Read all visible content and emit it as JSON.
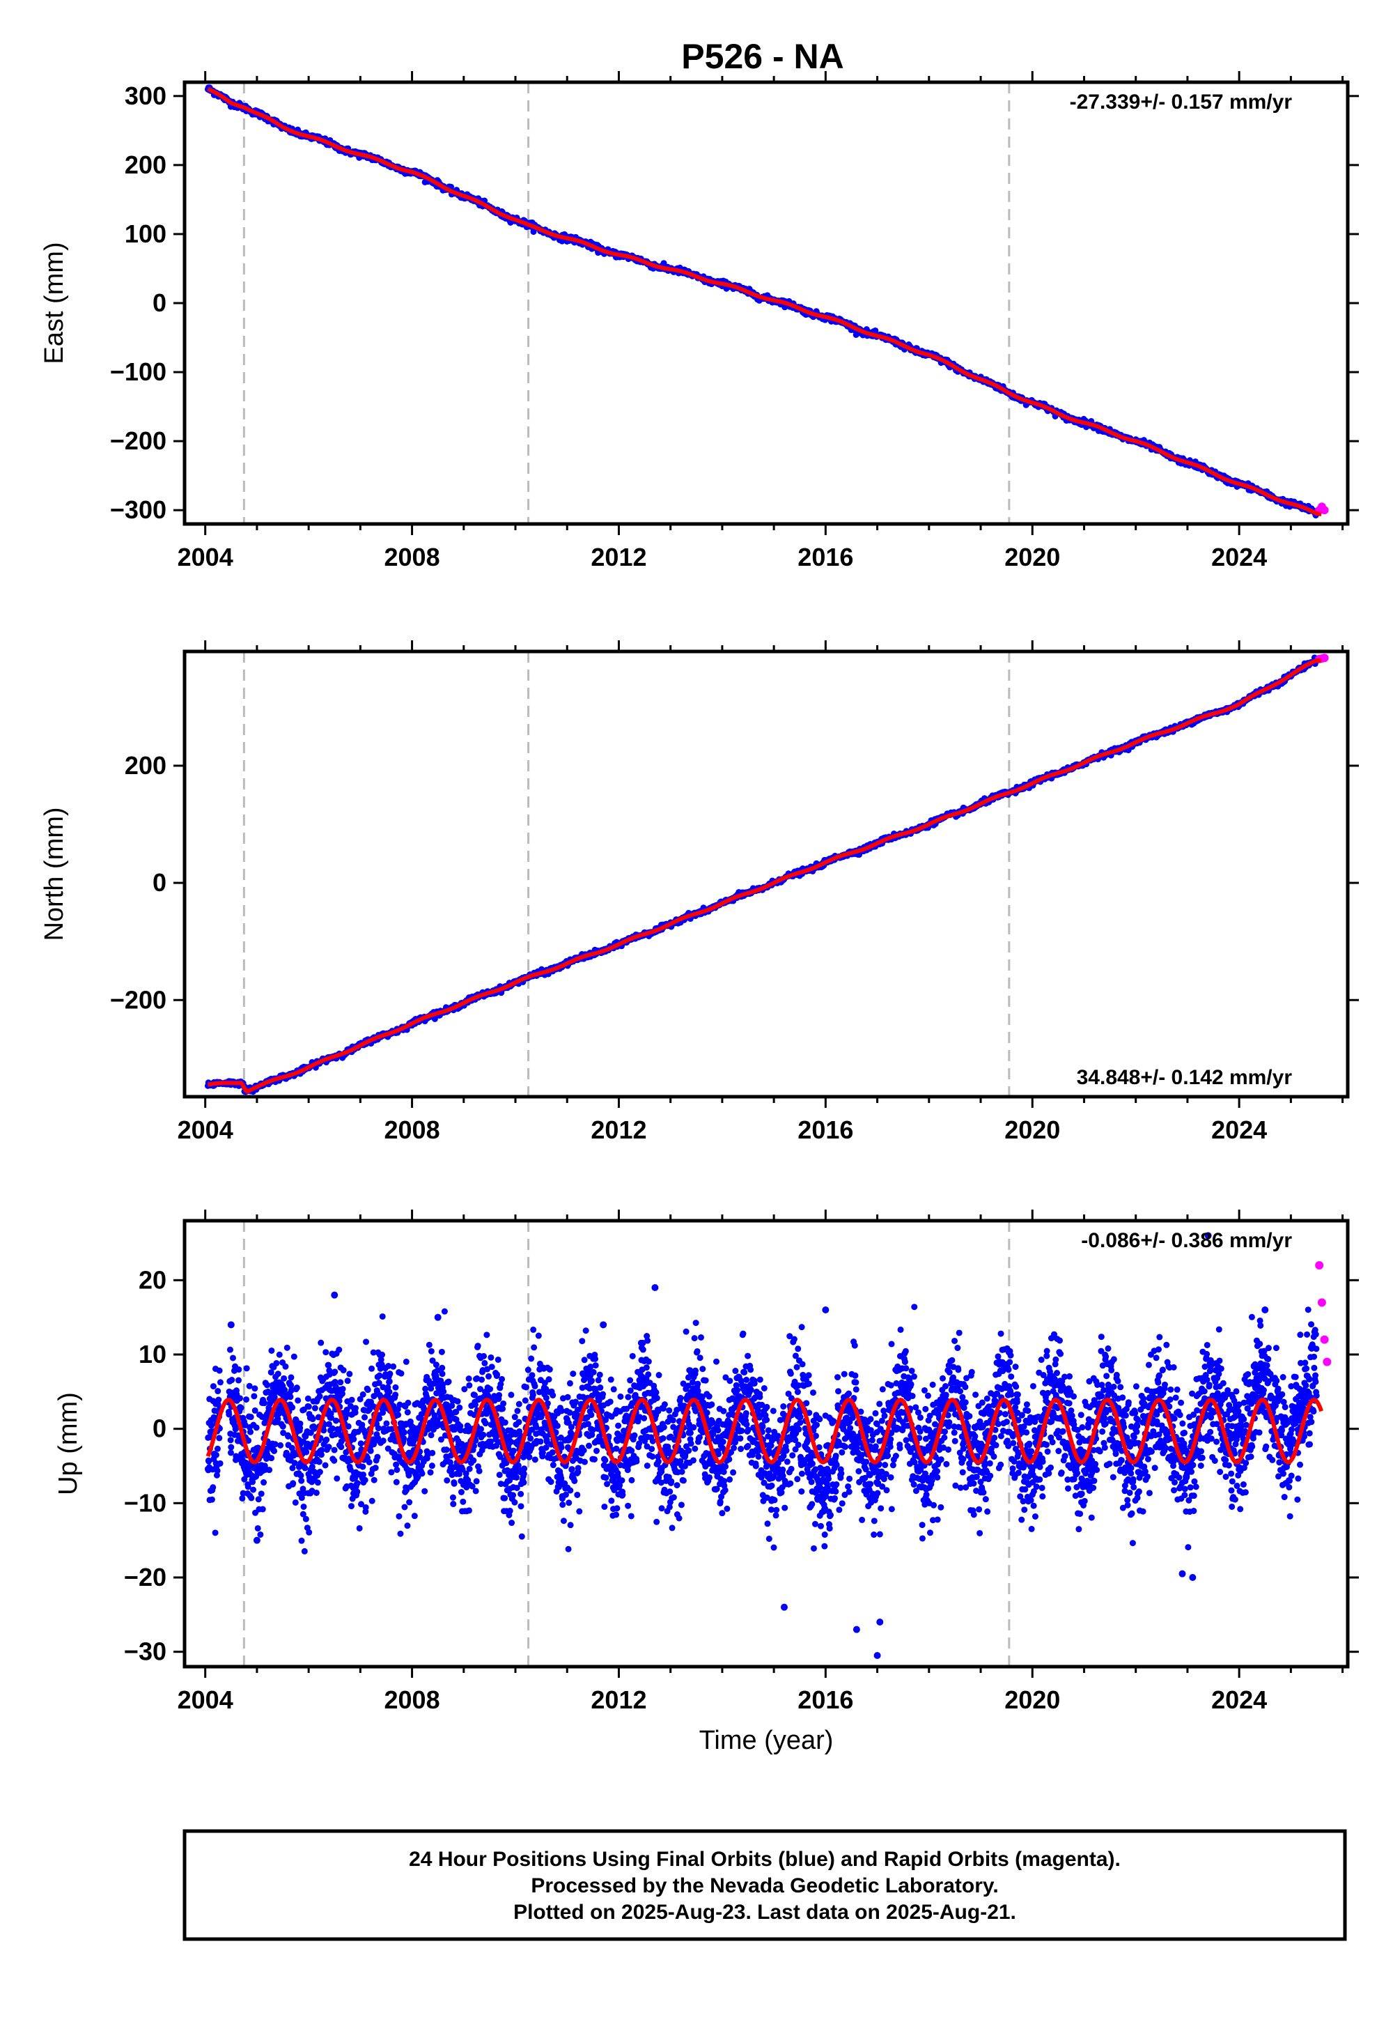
{
  "title": "P526 - NA",
  "colors": {
    "final": "#0000ff",
    "rapid": "#ff00ff",
    "model": "#ff0000",
    "offset_line": "#bbbbbb",
    "frame": "#000000"
  },
  "footer": {
    "line1": "24 Hour Positions Using Final Orbits (blue) and Rapid Orbits (magenta).",
    "line2": "Processed by the Nevada Geodetic Laboratory.",
    "line3": "Plotted on 2025-Aug-23. Last data on 2025-Aug-21."
  },
  "chart_data": [
    {
      "type": "scatter",
      "ylabel": "East (mm)",
      "xlabel": "",
      "rate_label": "-27.339+/- 0.157 mm/yr",
      "xlim": [
        2003.6,
        2026.1
      ],
      "ylim": [
        -320,
        320
      ],
      "x_ticks": [
        2004,
        2008,
        2012,
        2016,
        2020,
        2024
      ],
      "y_ticks": [
        300,
        200,
        100,
        0,
        -100,
        -200,
        -300
      ],
      "offset_lines": [
        2004.75,
        2010.25,
        2019.55
      ],
      "series": [
        {
          "label_source": "legend-footer",
          "style": "blue points",
          "x": [
            2004.05,
            2004.5,
            2004.75,
            2005.5,
            2006.5,
            2008.0,
            2010.25,
            2012.0,
            2014.0,
            2016.0,
            2018.0,
            2019.55,
            2020.5,
            2022.0,
            2024.0,
            2025.5
          ],
          "y": [
            310,
            290,
            285,
            255,
            228,
            190,
            112,
            70,
            28,
            -20,
            -75,
            -130,
            -160,
            -200,
            -262,
            -305
          ]
        },
        {
          "label_source": "legend-footer",
          "style": "magenta points",
          "x": [
            2025.55,
            2025.6,
            2025.65
          ],
          "y": [
            -300,
            -295,
            -300
          ]
        }
      ],
      "model": {
        "trend_mm_per_yr": -27.339,
        "y_2004": 308,
        "annual_amp": 1.5
      }
    },
    {
      "type": "scatter",
      "ylabel": "North (mm)",
      "xlabel": "",
      "rate_label": "34.848+/- 0.142 mm/yr",
      "xlim": [
        2003.6,
        2026.1
      ],
      "ylim": [
        -365,
        395
      ],
      "x_ticks": [
        2004,
        2008,
        2012,
        2016,
        2020,
        2024
      ],
      "y_ticks": [
        200,
        0,
        -200
      ],
      "offset_lines": [
        2004.75,
        2010.25,
        2019.55
      ],
      "series": [
        {
          "label_source": "legend-footer",
          "style": "blue points",
          "x": [
            2004.05,
            2004.7,
            2004.8,
            2006.0,
            2008.0,
            2010.0,
            2012.0,
            2014.0,
            2016.0,
            2018.0,
            2020.0,
            2022.0,
            2024.0,
            2025.5
          ],
          "y": [
            -345,
            -340,
            -355,
            -315,
            -240,
            -170,
            -105,
            -35,
            35,
            100,
            170,
            240,
            305,
            380
          ]
        },
        {
          "label_source": "legend-footer",
          "style": "magenta points",
          "x": [
            2025.55,
            2025.6,
            2025.65
          ],
          "y": [
            382,
            383,
            384
          ]
        }
      ],
      "model": {
        "trend_mm_per_yr": 34.848,
        "y_2004": -350,
        "annual_amp": 1.5
      }
    },
    {
      "type": "scatter",
      "ylabel": "Up (mm)",
      "xlabel": "Time (year)",
      "rate_label": "-0.086+/- 0.386 mm/yr",
      "xlim": [
        2003.6,
        2026.1
      ],
      "ylim": [
        -32,
        28
      ],
      "x_ticks": [
        2004,
        2008,
        2012,
        2016,
        2020,
        2024
      ],
      "y_ticks": [
        20,
        10,
        0,
        -10,
        -20,
        -30
      ],
      "offset_lines": [
        2004.75,
        2010.25,
        2019.55
      ],
      "series": [
        {
          "label_source": "legend-footer",
          "style": "blue points",
          "x": [
            2004.5,
            2005.0,
            2006.5,
            2008.5,
            2011.7,
            2012.7,
            2015.2,
            2016.0,
            2016.6,
            2017.0,
            2017.05,
            2022.9,
            2023.1,
            2023.4,
            2024.5
          ],
          "y": [
            14,
            -15,
            18,
            15,
            14,
            19,
            -24,
            16,
            -27,
            -30.5,
            -26,
            -19.5,
            -20,
            26,
            16
          ]
        },
        {
          "label_source": "legend-footer",
          "style": "magenta points",
          "x": [
            2025.55,
            2025.6,
            2025.65,
            2025.7
          ],
          "y": [
            22,
            17,
            12,
            9
          ]
        }
      ],
      "model": {
        "annual_amp": 4.2,
        "offset": -0.3,
        "phase_shift": 0.45
      }
    }
  ]
}
